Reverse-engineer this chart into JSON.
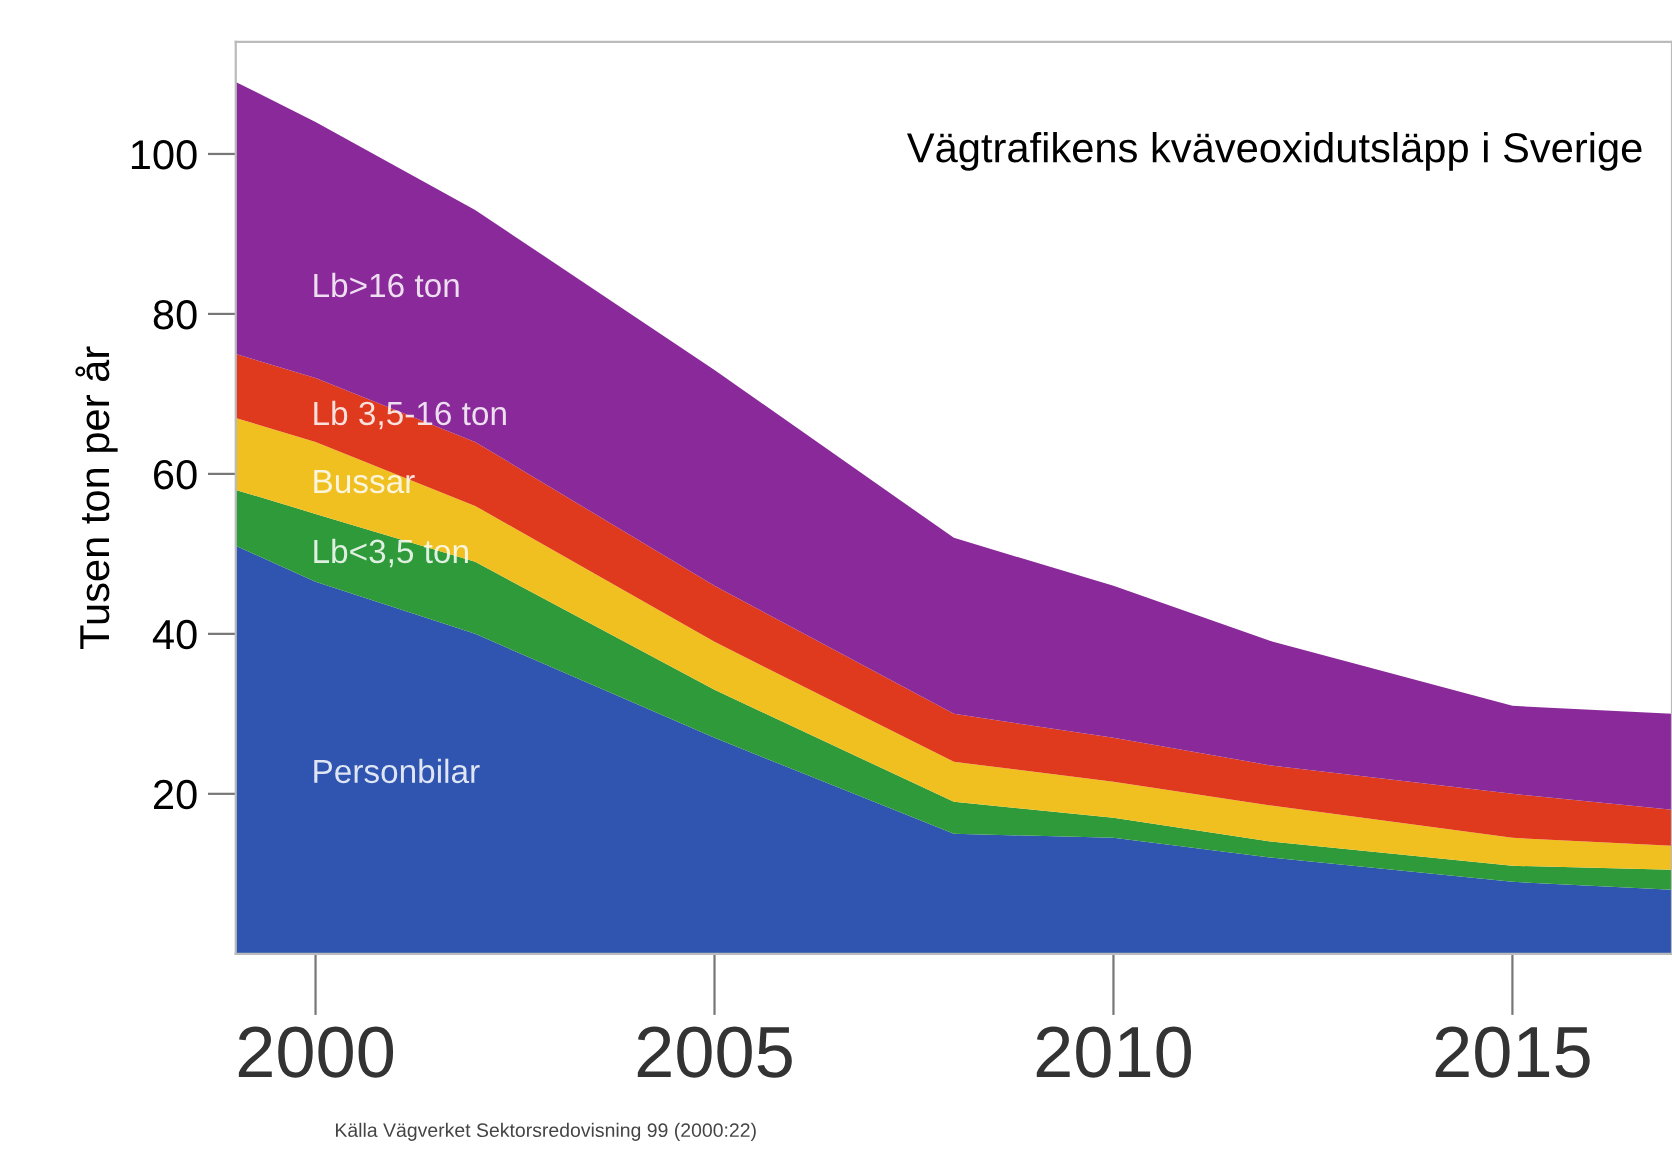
{
  "chart_data": {
    "type": "area",
    "stacked": true,
    "title": "Vägtrafikens kväveoxidutsläpp i Sverige",
    "ylabel": "Tusen ton per år",
    "annotations": [
      "Källa Vägverket Sektorsredovisning 99 (2000:22)"
    ],
    "x": [
      1999,
      2000,
      2002,
      2005,
      2008,
      2010,
      2012,
      2015,
      2017
    ],
    "series": [
      {
        "name": "Personbilar",
        "color": "#2f55b0",
        "values": [
          51,
          46.5,
          40,
          27,
          15,
          14.5,
          12,
          9,
          8
        ]
      },
      {
        "name": "Lb<3,5 ton",
        "color": "#2e9a3a",
        "values": [
          7,
          8.5,
          9,
          6,
          4,
          2.5,
          2,
          2,
          2.5
        ]
      },
      {
        "name": "Bussar",
        "color": "#f0c020",
        "values": [
          9,
          9,
          7,
          6,
          5,
          4.5,
          4.5,
          3.5,
          3
        ]
      },
      {
        "name": "Lb 3,5-16 ton",
        "color": "#e03a1e",
        "values": [
          8,
          8,
          8,
          7,
          6,
          5.5,
          5,
          5.5,
          4.5
        ]
      },
      {
        "name": "Lb>16 ton",
        "color": "#8a2a9a",
        "values": [
          34,
          32,
          29,
          27,
          22,
          19,
          15.5,
          11,
          12
        ]
      }
    ],
    "xlim": [
      1999,
      2017
    ],
    "xticks": [
      2000,
      2005,
      2010,
      2015
    ],
    "ylim": [
      0,
      114
    ],
    "yticks": [
      20,
      40,
      60,
      80,
      100
    ],
    "legend": false,
    "grid": false
  }
}
